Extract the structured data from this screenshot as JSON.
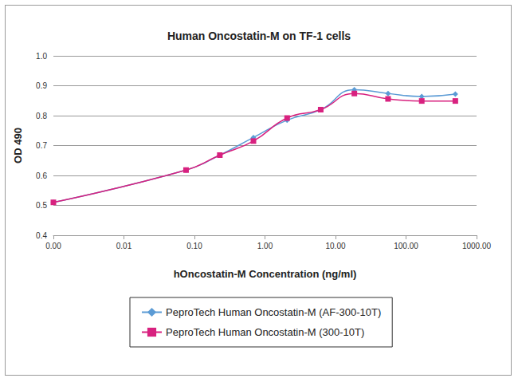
{
  "chart_data": {
    "type": "line",
    "title": "Human Oncostatin-M on TF-1 cells",
    "x_label": "hOncostatin-M Concentration (ng/ml)",
    "y_label": "OD 490",
    "log": "x",
    "grid": true,
    "legend": "bottom",
    "xlim": [
      0.001,
      1000
    ],
    "xticks": [
      {
        "value": 0.001,
        "label": "0.00"
      },
      {
        "value": 0.01,
        "label": "0.01"
      },
      {
        "value": 0.1,
        "label": "0.10"
      },
      {
        "value": 1,
        "label": "1.00"
      },
      {
        "value": 10,
        "label": "10.00"
      },
      {
        "value": 100,
        "label": "100.00"
      },
      {
        "value": 1000,
        "label": "1000.00"
      }
    ],
    "ylim": [
      0.4,
      1
    ],
    "yticks": [
      0.4,
      0.5,
      0.6,
      0.7,
      0.8,
      0.9,
      {
        "value": 1,
        "label": "1.0"
      }
    ],
    "x": [
      0.001,
      0.076,
      0.229,
      0.686,
      2.06,
      6.17,
      18.5,
      55.6,
      167,
      500
    ],
    "series": [
      {
        "name": "PeproTech Human Oncostatin-M (AF-300-10T)",
        "color": "#5b9bd5",
        "marker": "diamond",
        "line_style": "solid",
        "values": [
          0.51,
          0.618,
          0.668,
          0.727,
          0.785,
          0.82,
          0.887,
          0.874,
          0.864,
          0.872
        ]
      },
      {
        "name": "PeproTech Human Oncostatin-M (300-10T)",
        "color": "#d8217f",
        "marker": "square",
        "line_style": "solid",
        "values": [
          0.51,
          0.618,
          0.668,
          0.715,
          0.792,
          0.82,
          0.874,
          0.856,
          0.849,
          0.849
        ]
      }
    ]
  }
}
